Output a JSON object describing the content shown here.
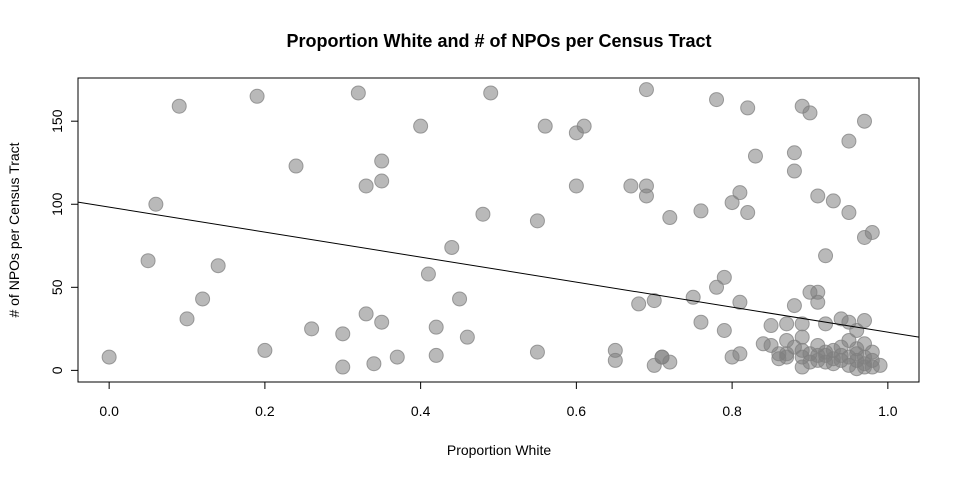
{
  "chart_data": {
    "type": "scatter",
    "title": "Proportion White and # of NPOs per Census Tract",
    "xlabel": "Proportion White",
    "ylabel": "# of NPOs per Census Tract",
    "xlim": [
      -0.04,
      1.04
    ],
    "ylim": [
      -7,
      176
    ],
    "xticks": [
      0.0,
      0.2,
      0.4,
      0.6,
      0.8,
      1.0
    ],
    "xtick_labels": [
      "0.0",
      "0.2",
      "0.4",
      "0.6",
      "0.8",
      "1.0"
    ],
    "yticks": [
      0,
      50,
      100,
      150
    ],
    "ytick_labels": [
      "0",
      "50",
      "100",
      "150"
    ],
    "grid": false,
    "legend": "none",
    "point_color": "#808080",
    "line_color": "#000000",
    "trend_line": {
      "x": [
        -0.04,
        1.04
      ],
      "y": [
        101.3,
        20.0
      ]
    },
    "points": [
      [
        0.0,
        8
      ],
      [
        0.05,
        66
      ],
      [
        0.06,
        100
      ],
      [
        0.09,
        159
      ],
      [
        0.1,
        31
      ],
      [
        0.12,
        43
      ],
      [
        0.14,
        63
      ],
      [
        0.19,
        165
      ],
      [
        0.2,
        12
      ],
      [
        0.24,
        123
      ],
      [
        0.26,
        25
      ],
      [
        0.3,
        22
      ],
      [
        0.3,
        2
      ],
      [
        0.32,
        167
      ],
      [
        0.33,
        34
      ],
      [
        0.33,
        111
      ],
      [
        0.34,
        4
      ],
      [
        0.35,
        126
      ],
      [
        0.35,
        114
      ],
      [
        0.35,
        29
      ],
      [
        0.37,
        8
      ],
      [
        0.4,
        147
      ],
      [
        0.41,
        58
      ],
      [
        0.42,
        26
      ],
      [
        0.42,
        9
      ],
      [
        0.44,
        74
      ],
      [
        0.45,
        43
      ],
      [
        0.46,
        20
      ],
      [
        0.48,
        94
      ],
      [
        0.49,
        167
      ],
      [
        0.55,
        11
      ],
      [
        0.55,
        90
      ],
      [
        0.56,
        147
      ],
      [
        0.6,
        111
      ],
      [
        0.6,
        143
      ],
      [
        0.61,
        147
      ],
      [
        0.65,
        6
      ],
      [
        0.65,
        12
      ],
      [
        0.67,
        111
      ],
      [
        0.68,
        40
      ],
      [
        0.69,
        111
      ],
      [
        0.69,
        105
      ],
      [
        0.69,
        169
      ],
      [
        0.7,
        42
      ],
      [
        0.7,
        3
      ],
      [
        0.71,
        8
      ],
      [
        0.71,
        8
      ],
      [
        0.72,
        92
      ],
      [
        0.72,
        5
      ],
      [
        0.75,
        44
      ],
      [
        0.76,
        96
      ],
      [
        0.76,
        29
      ],
      [
        0.78,
        163
      ],
      [
        0.78,
        50
      ],
      [
        0.79,
        56
      ],
      [
        0.79,
        24
      ],
      [
        0.8,
        101
      ],
      [
        0.8,
        8
      ],
      [
        0.81,
        107
      ],
      [
        0.81,
        41
      ],
      [
        0.81,
        10
      ],
      [
        0.82,
        158
      ],
      [
        0.82,
        95
      ],
      [
        0.83,
        129
      ],
      [
        0.84,
        16
      ],
      [
        0.85,
        15
      ],
      [
        0.85,
        27
      ],
      [
        0.86,
        7
      ],
      [
        0.86,
        10
      ],
      [
        0.87,
        18
      ],
      [
        0.87,
        8
      ],
      [
        0.87,
        10
      ],
      [
        0.87,
        28
      ],
      [
        0.88,
        131
      ],
      [
        0.88,
        120
      ],
      [
        0.88,
        39
      ],
      [
        0.88,
        14
      ],
      [
        0.89,
        28
      ],
      [
        0.89,
        20
      ],
      [
        0.89,
        8
      ],
      [
        0.89,
        2
      ],
      [
        0.89,
        12
      ],
      [
        0.89,
        159
      ],
      [
        0.9,
        155
      ],
      [
        0.9,
        47
      ],
      [
        0.9,
        10
      ],
      [
        0.9,
        5
      ],
      [
        0.91,
        105
      ],
      [
        0.91,
        47
      ],
      [
        0.91,
        41
      ],
      [
        0.91,
        15
      ],
      [
        0.91,
        9
      ],
      [
        0.91,
        6
      ],
      [
        0.92,
        69
      ],
      [
        0.92,
        28
      ],
      [
        0.92,
        9
      ],
      [
        0.92,
        5
      ],
      [
        0.92,
        11
      ],
      [
        0.93,
        102
      ],
      [
        0.93,
        7
      ],
      [
        0.93,
        12
      ],
      [
        0.93,
        4
      ],
      [
        0.94,
        31
      ],
      [
        0.94,
        9
      ],
      [
        0.94,
        6
      ],
      [
        0.94,
        14
      ],
      [
        0.95,
        138
      ],
      [
        0.95,
        95
      ],
      [
        0.95,
        29
      ],
      [
        0.95,
        18
      ],
      [
        0.95,
        3
      ],
      [
        0.95,
        8
      ],
      [
        0.96,
        24
      ],
      [
        0.96,
        10
      ],
      [
        0.96,
        6
      ],
      [
        0.96,
        1
      ],
      [
        0.96,
        13
      ],
      [
        0.97,
        150
      ],
      [
        0.97,
        80
      ],
      [
        0.97,
        30
      ],
      [
        0.97,
        16
      ],
      [
        0.97,
        8
      ],
      [
        0.97,
        4
      ],
      [
        0.97,
        2
      ],
      [
        0.98,
        83
      ],
      [
        0.98,
        6
      ],
      [
        0.98,
        2
      ],
      [
        0.98,
        11
      ],
      [
        0.99,
        3
      ]
    ]
  }
}
